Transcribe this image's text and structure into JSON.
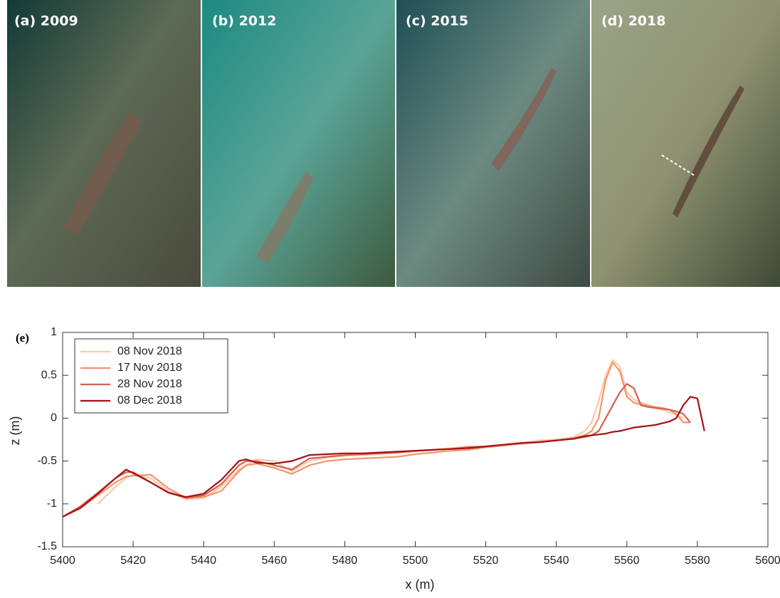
{
  "image_panels": [
    {
      "label": "(a) 2009"
    },
    {
      "label": "(b) 2012"
    },
    {
      "label": "(c) 2015"
    },
    {
      "label": "(d) 2018"
    }
  ],
  "chart_data": {
    "type": "line",
    "title": "(e)",
    "xlabel": "x (m)",
    "ylabel": "z (m)",
    "x": [
      5400,
      5405,
      5410,
      5415,
      5418,
      5420,
      5425,
      5430,
      5435,
      5440,
      5445,
      5450,
      5452,
      5455,
      5460,
      5465,
      5470,
      5475,
      5480,
      5485,
      5490,
      5495,
      5500,
      5505,
      5510,
      5515,
      5520,
      5525,
      5530,
      5535,
      5540,
      5545,
      5548,
      5550,
      5552,
      5554,
      5556,
      5558,
      5560,
      5562,
      5564,
      5566,
      5568,
      5570,
      5572,
      5574,
      5576,
      5578,
      5580,
      5582
    ],
    "series": [
      {
        "name": "08 Nov 2018",
        "color": "#fcc8ab",
        "values": [
          null,
          null,
          -1.0,
          -0.8,
          -0.7,
          -0.66,
          -0.7,
          -0.85,
          -0.95,
          -0.93,
          -0.8,
          -0.6,
          -0.55,
          -0.48,
          -0.5,
          -0.62,
          -0.5,
          -0.46,
          -0.44,
          -0.43,
          -0.42,
          -0.4,
          -0.39,
          -0.37,
          -0.35,
          -0.33,
          -0.33,
          -0.31,
          -0.29,
          -0.26,
          -0.25,
          -0.22,
          -0.15,
          -0.05,
          0.2,
          0.5,
          0.68,
          0.6,
          0.3,
          0.22,
          0.18,
          0.15,
          0.12,
          0.1,
          0.07,
          0.04,
          0.0,
          null,
          null,
          null
        ]
      },
      {
        "name": "17 Nov 2018",
        "color": "#f4956a",
        "values": [
          -1.15,
          -1.05,
          -0.9,
          -0.75,
          -0.68,
          -0.67,
          -0.66,
          -0.82,
          -0.93,
          -0.92,
          -0.85,
          -0.62,
          -0.55,
          -0.53,
          -0.58,
          -0.65,
          -0.55,
          -0.5,
          -0.48,
          -0.47,
          -0.46,
          -0.45,
          -0.42,
          -0.4,
          -0.38,
          -0.37,
          -0.34,
          -0.32,
          -0.3,
          -0.28,
          -0.26,
          -0.23,
          -0.2,
          -0.15,
          0.0,
          0.45,
          0.65,
          0.55,
          0.25,
          0.18,
          0.16,
          0.15,
          0.13,
          0.12,
          0.1,
          0.05,
          -0.05,
          -0.05,
          null,
          null
        ]
      },
      {
        "name": "28 Nov 2018",
        "color": "#d6604d",
        "values": [
          -1.15,
          -1.03,
          -0.87,
          -0.7,
          -0.63,
          -0.63,
          -0.75,
          -0.87,
          -0.93,
          -0.9,
          -0.77,
          -0.55,
          -0.5,
          -0.5,
          -0.55,
          -0.6,
          -0.47,
          -0.45,
          -0.43,
          -0.42,
          -0.41,
          -0.4,
          -0.38,
          -0.37,
          -0.36,
          -0.34,
          -0.33,
          -0.31,
          -0.29,
          -0.28,
          -0.26,
          -0.24,
          -0.22,
          -0.2,
          -0.15,
          0.0,
          0.15,
          0.3,
          0.4,
          0.35,
          0.15,
          0.13,
          0.12,
          0.11,
          0.1,
          0.08,
          0.05,
          -0.05,
          null,
          null
        ]
      },
      {
        "name": "08 Dec 2018",
        "color": "#a50f15",
        "values": [
          -1.15,
          -1.05,
          -0.88,
          -0.7,
          -0.6,
          -0.64,
          -0.75,
          -0.87,
          -0.92,
          -0.88,
          -0.72,
          -0.5,
          -0.48,
          -0.52,
          -0.53,
          -0.5,
          -0.43,
          -0.42,
          -0.41,
          -0.41,
          -0.4,
          -0.39,
          -0.38,
          -0.37,
          -0.36,
          -0.35,
          -0.33,
          -0.31,
          -0.29,
          -0.28,
          -0.26,
          -0.24,
          -0.21,
          -0.2,
          -0.19,
          -0.18,
          -0.16,
          -0.15,
          -0.13,
          -0.11,
          -0.1,
          -0.09,
          -0.08,
          -0.06,
          -0.04,
          0.0,
          0.15,
          0.25,
          0.23,
          -0.15
        ]
      }
    ],
    "xlim": [
      5400,
      5600
    ],
    "xticks": [
      5400,
      5420,
      5440,
      5460,
      5480,
      5500,
      5520,
      5540,
      5560,
      5580,
      5600
    ],
    "ylim": [
      -1.5,
      1
    ],
    "yticks": [
      -1.5,
      -1,
      -0.5,
      0,
      0.5,
      1
    ],
    "legend": "upper left",
    "grid": false
  }
}
